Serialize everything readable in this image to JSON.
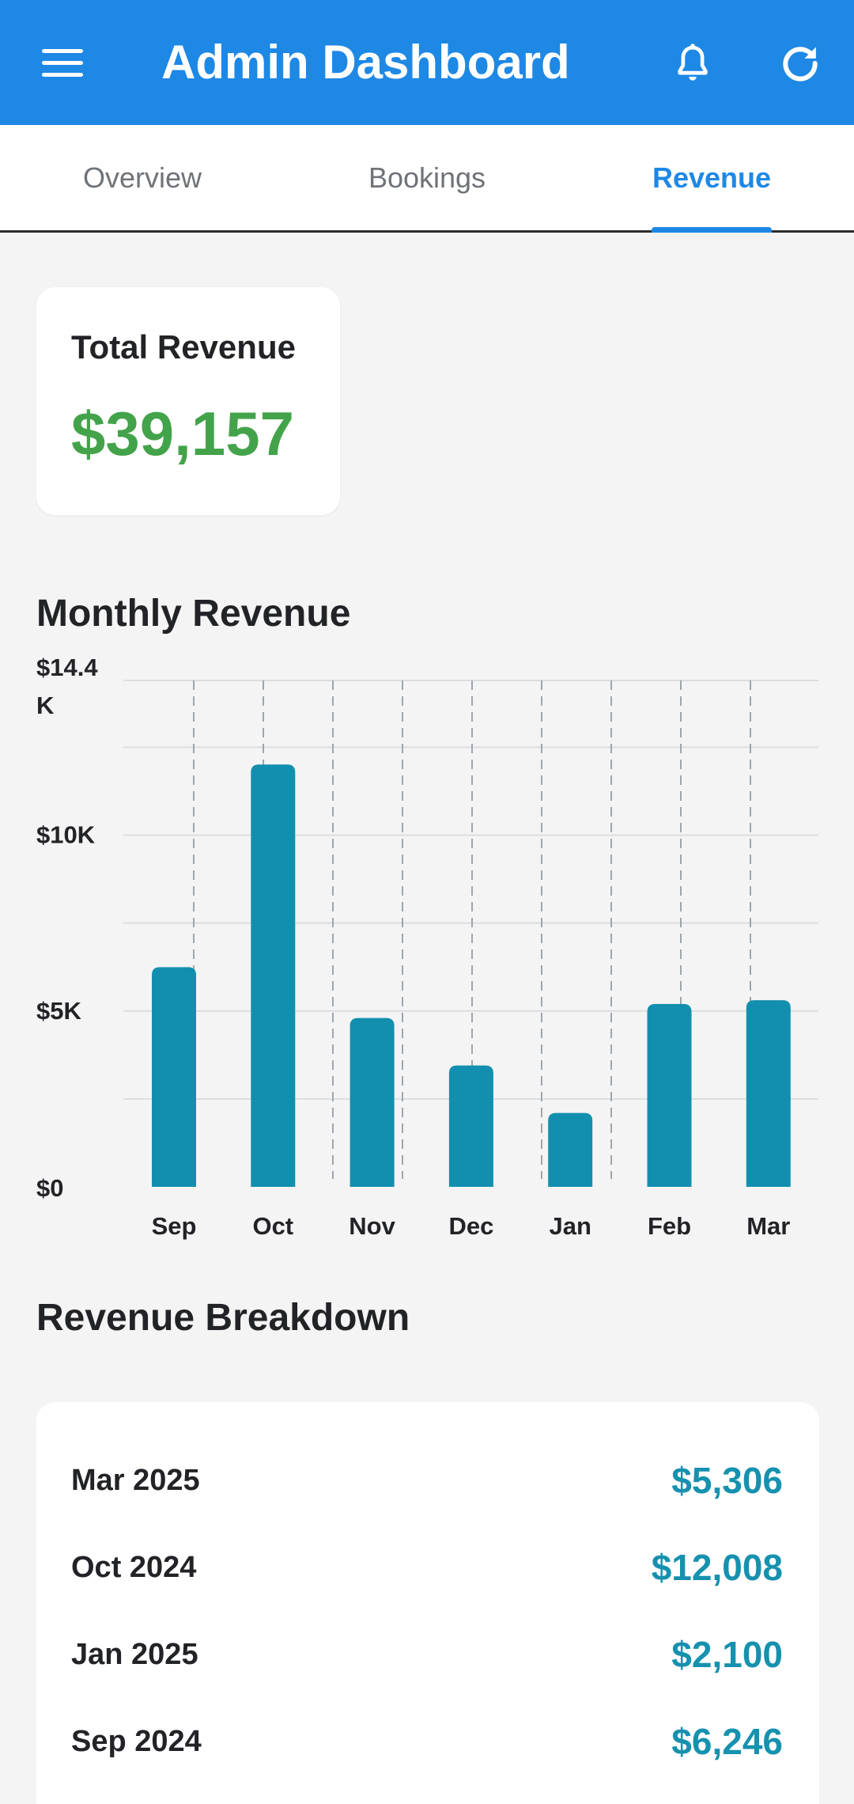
{
  "appbar": {
    "title": "Admin Dashboard",
    "menu_icon": "hamburger-menu-icon",
    "bell_icon": "bell-icon",
    "refresh_icon": "refresh-icon",
    "color": "#1e88e5"
  },
  "tabs": [
    {
      "label": "Overview",
      "active": false
    },
    {
      "label": "Bookings",
      "active": false
    },
    {
      "label": "Revenue",
      "active": true
    }
  ],
  "total_revenue": {
    "label": "Total Revenue",
    "value": "$39,157",
    "color": "#43a34a"
  },
  "monthly_revenue": {
    "title": "Monthly Revenue"
  },
  "chart_data": {
    "type": "bar",
    "categories": [
      "Sep",
      "Oct",
      "Nov",
      "Dec",
      "Jan",
      "Feb",
      "Mar"
    ],
    "values": [
      6246,
      12008,
      4800,
      3450,
      2100,
      5200,
      5306
    ],
    "ylim": [
      0,
      14400
    ],
    "yticks": [
      {
        "value": 0,
        "label": "$0"
      },
      {
        "value": 5000,
        "label": "$5K"
      },
      {
        "value": 10000,
        "label": "$10K"
      },
      {
        "value": 14400,
        "label": "$14.4 K"
      }
    ],
    "grid": true,
    "bar_color": "#128fae",
    "xlabel": "",
    "ylabel": ""
  },
  "breakdown": {
    "title": "Revenue Breakdown",
    "rows": [
      {
        "month": "Mar 2025",
        "amount": "$5,306"
      },
      {
        "month": "Oct 2024",
        "amount": "$12,008"
      },
      {
        "month": "Jan 2025",
        "amount": "$2,100"
      },
      {
        "month": "Sep 2024",
        "amount": "$6,246"
      }
    ],
    "amount_color": "#1691ae"
  }
}
